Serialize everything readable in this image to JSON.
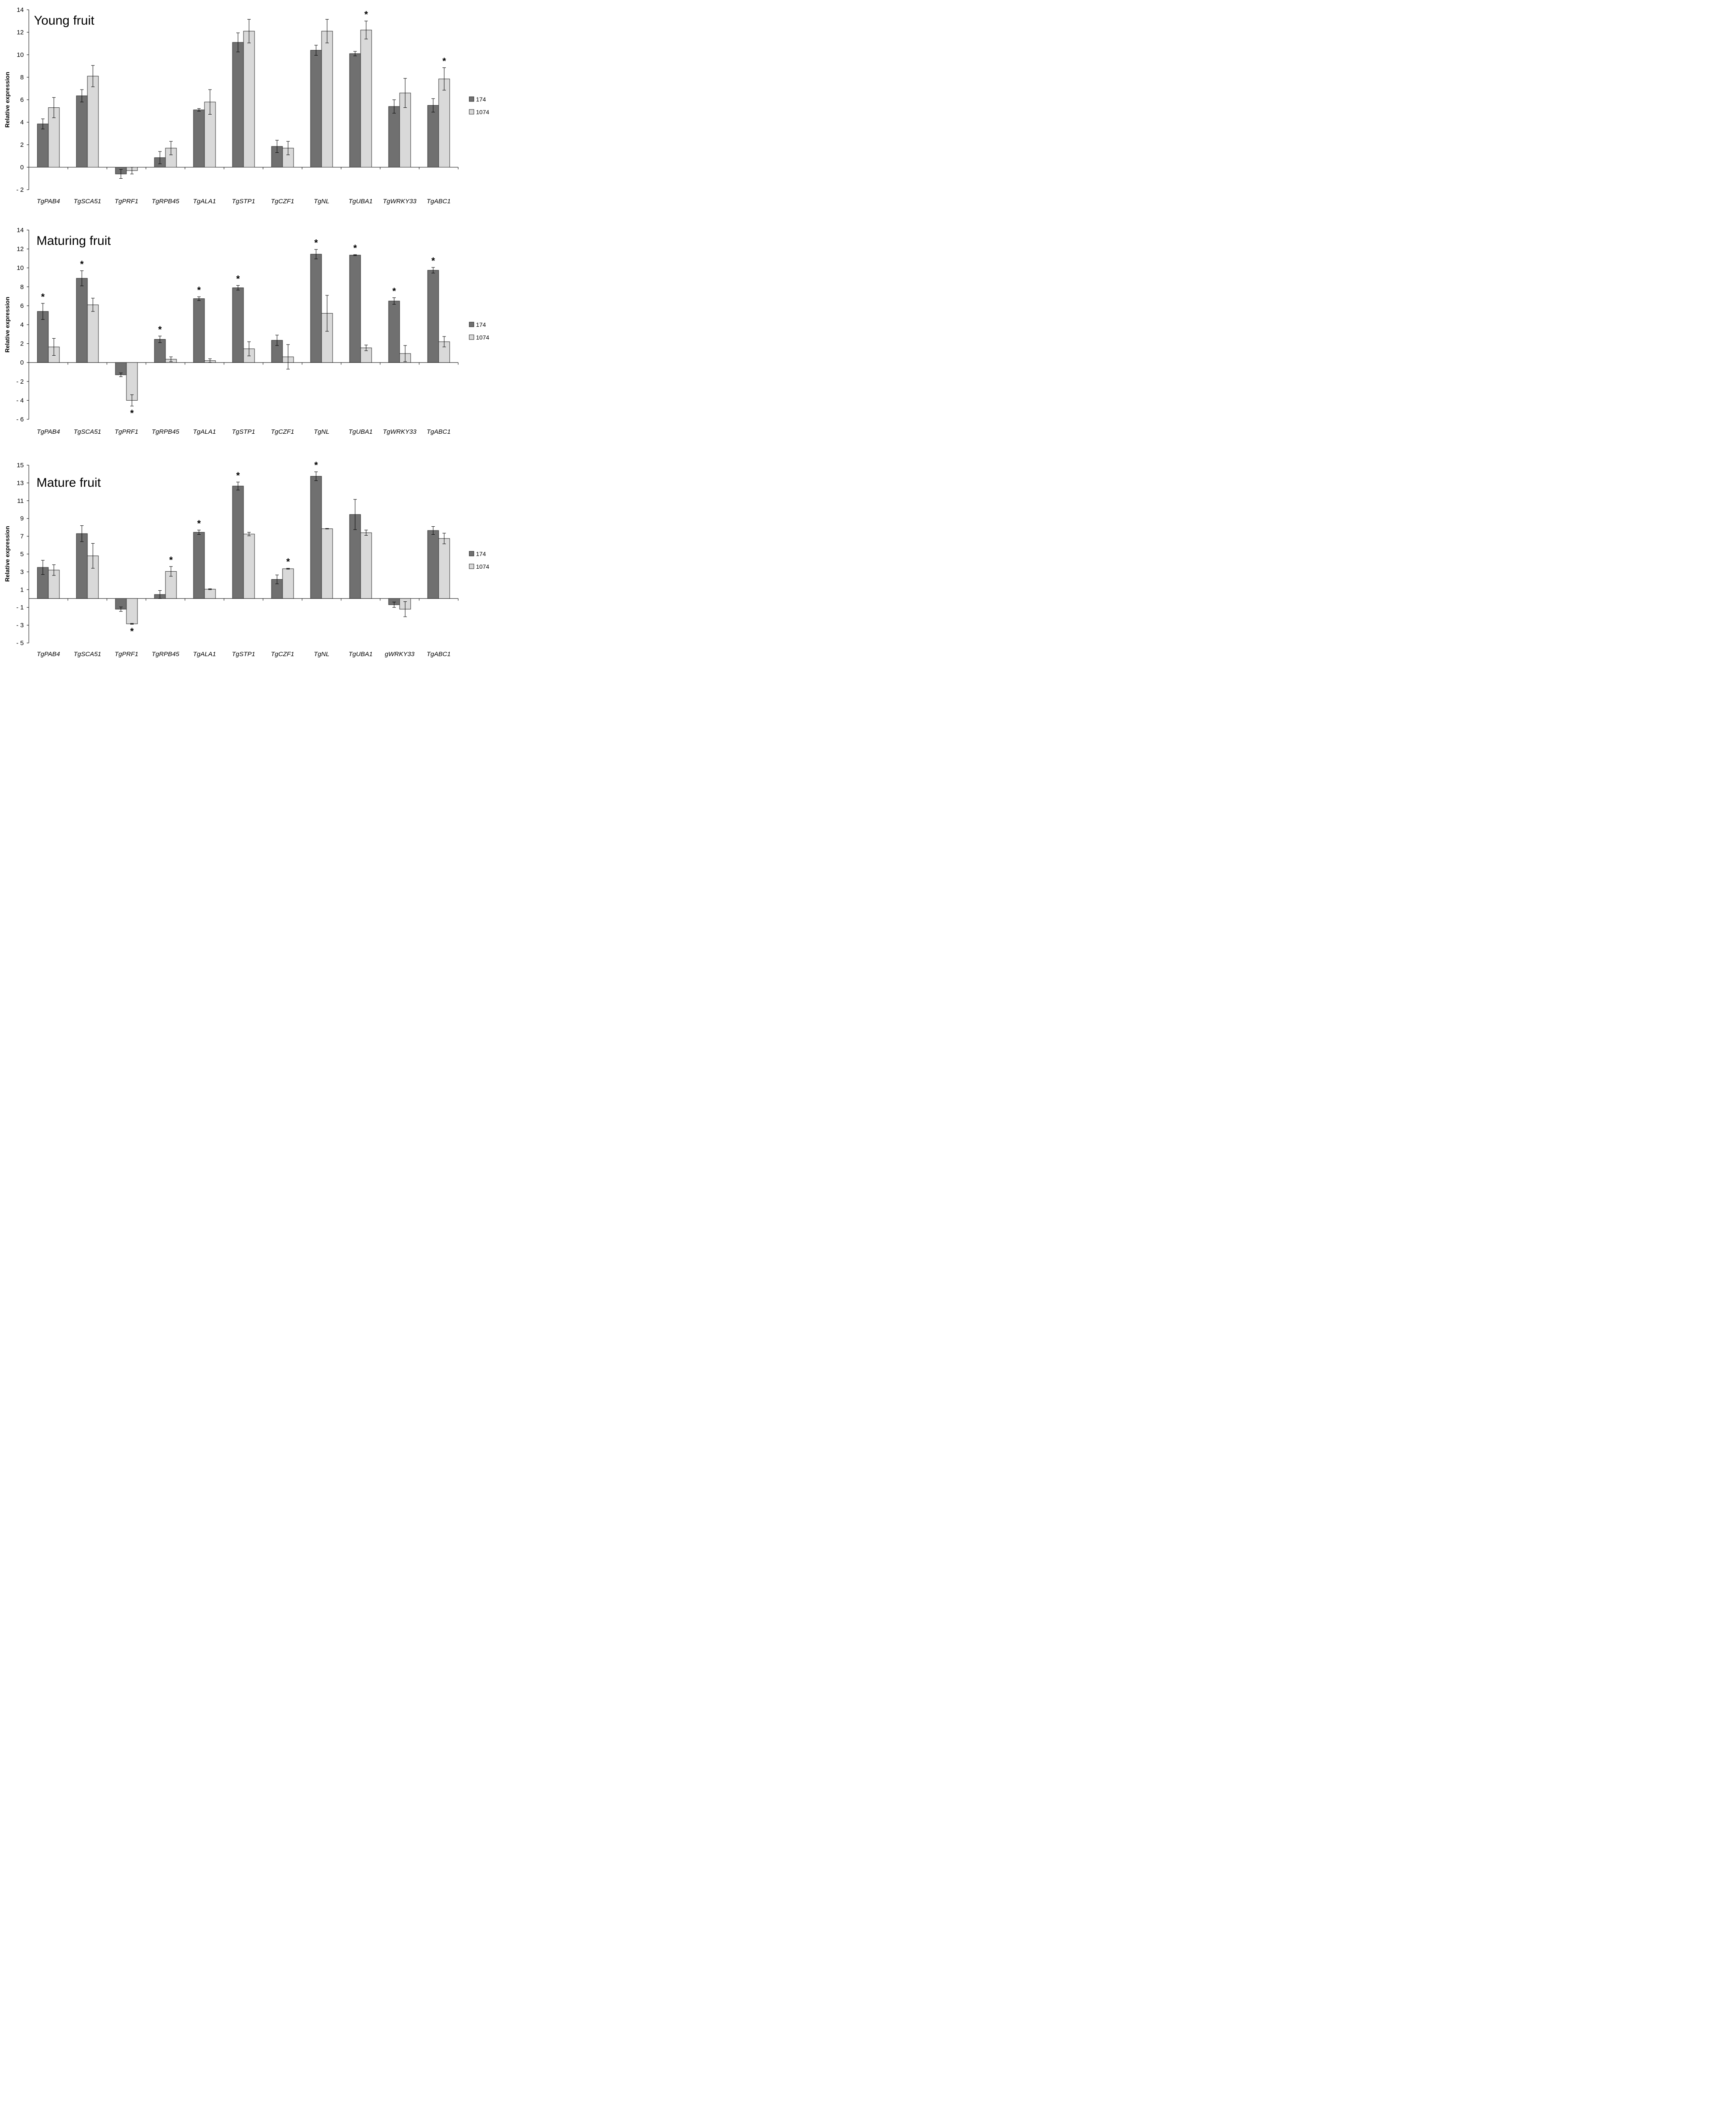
{
  "chart_data": [
    {
      "type": "bar",
      "title": "Young fruit",
      "ylabel": "Relative expression",
      "ylim": [
        -2,
        14
      ],
      "yticks": [
        -2,
        0,
        2,
        4,
        6,
        8,
        10,
        12,
        14
      ],
      "ytick_labels": [
        "- 2",
        "0",
        "2",
        "4",
        "6",
        "8",
        "10",
        "12",
        "14"
      ],
      "categories": [
        "TgPAB4",
        "TgSCA51",
        "TgPRF1",
        "TgRPB45",
        "TgALA1",
        "TgSTP1",
        "TgCZF1",
        "TgNL",
        "TgUBA1",
        "TgWRKY33",
        "TgABC1"
      ],
      "series": [
        {
          "name": "174",
          "color": "#707070",
          "values": [
            3.85,
            6.35,
            -0.6,
            0.85,
            5.1,
            11.1,
            1.85,
            10.4,
            10.1,
            5.4,
            5.5
          ],
          "errors": [
            0.45,
            0.55,
            0.4,
            0.55,
            0.12,
            0.85,
            0.55,
            0.45,
            0.2,
            0.6,
            0.6
          ],
          "stars": [
            false,
            false,
            false,
            false,
            false,
            false,
            false,
            false,
            false,
            false,
            false
          ]
        },
        {
          "name": "1074",
          "color": "#d9d9d9",
          "values": [
            5.3,
            8.1,
            -0.3,
            1.7,
            5.8,
            12.1,
            1.7,
            12.1,
            12.2,
            6.6,
            7.85
          ],
          "errors": [
            0.9,
            0.95,
            0.3,
            0.6,
            1.1,
            1.05,
            0.6,
            1.05,
            0.8,
            1.3,
            1.0
          ],
          "stars": [
            false,
            false,
            false,
            false,
            false,
            false,
            false,
            false,
            true,
            false,
            true
          ]
        }
      ]
    },
    {
      "type": "bar",
      "title": "Maturing fruit",
      "ylabel": "Relative expression",
      "ylim": [
        -6,
        14
      ],
      "yticks": [
        -6,
        -4,
        -2,
        0,
        2,
        4,
        6,
        8,
        10,
        12,
        14
      ],
      "ytick_labels": [
        "- 6",
        "- 4",
        "- 2",
        "0",
        "2",
        "4",
        "6",
        "8",
        "10",
        "12",
        "14"
      ],
      "categories": [
        "TgPAB4",
        "TgSCA51",
        "TgPRF1",
        "TgRPB45",
        "TgALA1",
        "TgSTP1",
        "TgCZF1",
        "TgNL",
        "TgUBA1",
        "TgWRKY33",
        "TgABC1"
      ],
      "series": [
        {
          "name": "174",
          "color": "#707070",
          "values": [
            5.4,
            8.9,
            -1.3,
            2.45,
            6.75,
            7.9,
            2.35,
            11.45,
            11.35,
            6.5,
            9.75
          ],
          "errors": [
            0.85,
            0.8,
            0.2,
            0.35,
            0.2,
            0.25,
            0.55,
            0.5,
            0.05,
            0.35,
            0.3
          ],
          "stars": [
            true,
            true,
            false,
            true,
            true,
            true,
            false,
            true,
            true,
            true,
            true
          ]
        },
        {
          "name": "1074",
          "color": "#d9d9d9",
          "values": [
            1.65,
            6.1,
            -4.0,
            0.35,
            0.2,
            1.45,
            0.6,
            5.2,
            1.55,
            0.95,
            2.2
          ],
          "errors": [
            0.9,
            0.7,
            0.6,
            0.25,
            0.2,
            0.75,
            1.3,
            1.9,
            0.3,
            0.85,
            0.55
          ],
          "stars": [
            false,
            false,
            true,
            false,
            false,
            false,
            false,
            false,
            false,
            false,
            false
          ]
        }
      ]
    },
    {
      "type": "bar",
      "title": "Mature fruit",
      "ylabel": "Relative expression",
      "ylim": [
        -5,
        15
      ],
      "yticks": [
        -5,
        -3,
        -1,
        1,
        3,
        5,
        7,
        9,
        11,
        13,
        15
      ],
      "ytick_labels": [
        "- 5",
        "- 3",
        "- 1",
        "1",
        "3",
        "5",
        "7",
        "9",
        "11",
        "13",
        "15"
      ],
      "categories": [
        "TgPAB4",
        "TgSCA51",
        "TgPRF1",
        "TgRPB45",
        "TgALA1",
        "TgSTP1",
        "TgCZF1",
        "TgNL",
        "TgUBA1",
        "gWRKY33",
        "TgABC1"
      ],
      "series": [
        {
          "name": "174",
          "color": "#707070",
          "values": [
            3.5,
            7.3,
            -1.2,
            0.45,
            7.45,
            12.65,
            2.15,
            13.75,
            9.45,
            -0.7,
            7.65
          ],
          "errors": [
            0.8,
            0.9,
            0.25,
            0.45,
            0.25,
            0.45,
            0.5,
            0.5,
            1.7,
            0.3,
            0.45
          ],
          "stars": [
            false,
            false,
            false,
            false,
            true,
            true,
            false,
            true,
            false,
            false,
            false
          ]
        },
        {
          "name": "1074",
          "color": "#d9d9d9",
          "values": [
            3.2,
            4.8,
            -2.85,
            3.05,
            1.05,
            7.25,
            3.35,
            7.85,
            7.4,
            -1.2,
            6.75
          ],
          "errors": [
            0.6,
            1.4,
            0.05,
            0.55,
            0.05,
            0.2,
            0.05,
            0.03,
            0.3,
            0.85,
            0.6
          ],
          "stars": [
            false,
            false,
            true,
            true,
            false,
            false,
            true,
            false,
            false,
            false,
            false
          ]
        }
      ]
    }
  ]
}
